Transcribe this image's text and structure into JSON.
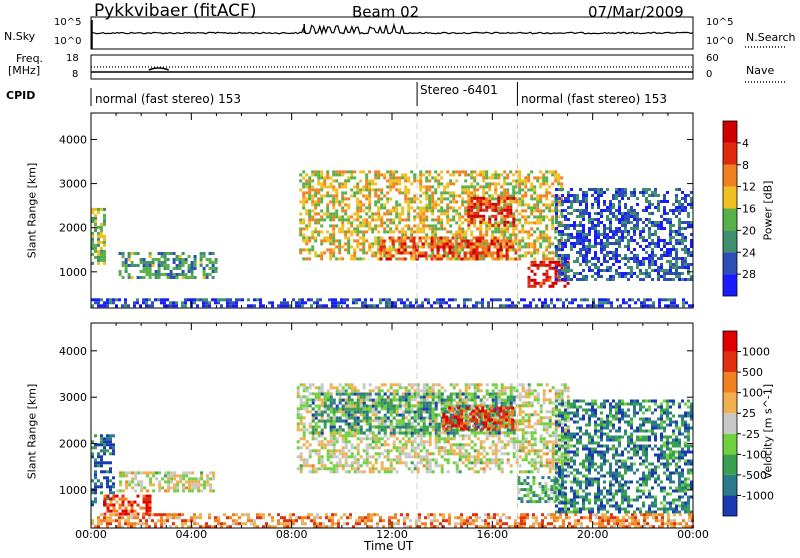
{
  "header": {
    "station": "Pykkvibaer (fitACF)",
    "beam": "Beam 02",
    "date": "07/Mar/2009"
  },
  "status_panels": {
    "nsky": {
      "label": "N.Sky",
      "right_label": "N.Search",
      "left_ticks": [
        "10^5",
        "10^0"
      ],
      "right_ticks": [
        "10^5",
        "10^0"
      ]
    },
    "freq": {
      "label_line1": "Freq.",
      "label_line2": "[MHz]",
      "right_label": "Nave",
      "left_ticks": [
        "18",
        "8"
      ],
      "right_ticks": [
        "60",
        "0"
      ]
    },
    "cpid": {
      "label": "CPID",
      "segments": [
        {
          "text": "normal (fast stereo) 153",
          "start_hour": 0.0,
          "end_hour": 13.0
        },
        {
          "text": "Stereo -6401",
          "start_hour": 13.0,
          "end_hour": 17.0
        },
        {
          "text": "normal (fast stereo) 153",
          "start_hour": 17.0,
          "end_hour": 24.0
        }
      ]
    }
  },
  "chart_data": [
    {
      "type": "heatmap",
      "name": "power",
      "ylabel": "Slant Range [km]",
      "ylim": [
        180,
        4600
      ],
      "yticks": [
        1000,
        2000,
        3000,
        4000
      ],
      "xlim": [
        0,
        24
      ],
      "colorbar": {
        "label": "Power [dB]",
        "ticks": [
          "4",
          "8",
          "12",
          "16",
          "20",
          "24",
          "28"
        ],
        "colors": [
          "#1a1aff",
          "#2d4fb5",
          "#3d8f6e",
          "#58b048",
          "#f0c020",
          "#f08020",
          "#e02a10",
          "#d00000"
        ]
      },
      "regions": [
        {
          "t0": 0.0,
          "t1": 0.55,
          "r0": 1200,
          "r1": 2450,
          "level": 0.45
        },
        {
          "t0": 1.1,
          "t1": 5.0,
          "r0": 880,
          "r1": 1450,
          "level": 0.35
        },
        {
          "t0": 8.3,
          "t1": 18.8,
          "r0": 1300,
          "r1": 3300,
          "level": 0.55
        },
        {
          "t0": 11.5,
          "t1": 17.0,
          "r0": 1300,
          "r1": 1800,
          "level": 0.78
        },
        {
          "t0": 15.0,
          "t1": 16.8,
          "r0": 2050,
          "r1": 2700,
          "level": 0.85
        },
        {
          "t0": 17.4,
          "t1": 19.0,
          "r0": 700,
          "r1": 1250,
          "level": 0.92
        },
        {
          "t0": 18.5,
          "t1": 24.0,
          "r0": 800,
          "r1": 2900,
          "level": 0.2
        },
        {
          "t0": 0.0,
          "t1": 24.0,
          "r0": 200,
          "r1": 400,
          "level": 0.15
        }
      ]
    },
    {
      "type": "heatmap",
      "name": "velocity",
      "ylabel": "Slant Range [km]",
      "ylim": [
        180,
        4600
      ],
      "yticks": [
        1000,
        2000,
        3000,
        4000
      ],
      "xlim": [
        0,
        24
      ],
      "colorbar": {
        "label": "Velocity [m s^-1]",
        "ticks": [
          "1000",
          "500",
          "100",
          "25",
          "-25",
          "-100",
          "-500",
          "-1000"
        ],
        "colors": [
          "#1a3ab0",
          "#2a7a8a",
          "#3aa050",
          "#70d040",
          "#c8c8c8",
          "#f0b050",
          "#f08020",
          "#e03010",
          "#e00000"
        ]
      },
      "regions": [
        {
          "t0": 0.0,
          "t1": 0.9,
          "r0": 700,
          "r1": 2200,
          "level": 0.1
        },
        {
          "t0": 0.5,
          "t1": 2.4,
          "r0": 450,
          "r1": 900,
          "level": 0.82
        },
        {
          "t0": 1.0,
          "t1": 4.9,
          "r0": 1000,
          "r1": 1400,
          "level": 0.5
        },
        {
          "t0": 8.2,
          "t1": 19.0,
          "r0": 1400,
          "r1": 3300,
          "level": 0.5
        },
        {
          "t0": 8.8,
          "t1": 16.9,
          "r0": 2200,
          "r1": 3100,
          "level": 0.25
        },
        {
          "t0": 14.0,
          "t1": 16.8,
          "r0": 2300,
          "r1": 2800,
          "level": 0.85
        },
        {
          "t0": 17.0,
          "t1": 18.8,
          "r0": 750,
          "r1": 1300,
          "level": 0.3
        },
        {
          "t0": 18.5,
          "t1": 24.0,
          "r0": 500,
          "r1": 2950,
          "level": 0.2
        },
        {
          "t0": 0.0,
          "t1": 24.0,
          "r0": 200,
          "r1": 500,
          "level": 0.7
        }
      ]
    }
  ],
  "xaxis": {
    "label": "Time UT",
    "ticks": [
      "00:00",
      "04:00",
      "08:00",
      "12:00",
      "16:00",
      "20:00",
      "00:00"
    ]
  },
  "colors": {
    "axis": "#000000",
    "separator": "#cccccc"
  }
}
